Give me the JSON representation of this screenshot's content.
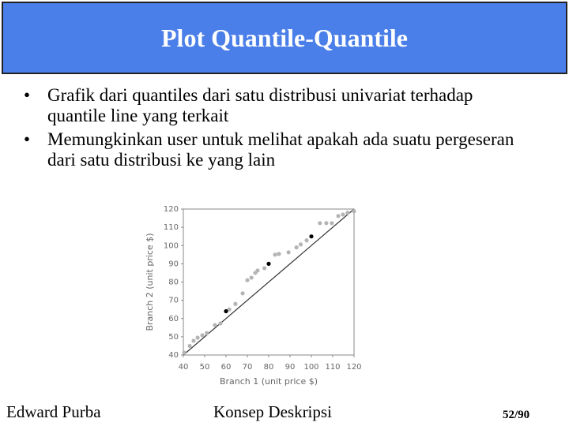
{
  "header": {
    "title": "Plot Quantile-Quantile"
  },
  "bullets": [
    "Grafik dari quantiles dari satu distribusi univariat terhadap quantile line yang terkait",
    "Memungkinkan user untuk melihat apakah ada suatu pergeseran dari satu distribusi ke yang lain"
  ],
  "chart_data": {
    "type": "scatter",
    "x_label": "Branch 1 (unit price $)",
    "y_label": "Branch 2 (unit price $)",
    "xlim": [
      40,
      120
    ],
    "ylim": [
      40,
      120
    ],
    "xticks": [
      40,
      50,
      60,
      70,
      80,
      90,
      100,
      110,
      120
    ],
    "yticks": [
      40,
      50,
      60,
      70,
      80,
      90,
      100,
      110,
      120
    ],
    "series": [
      {
        "color": "#b4b4b4",
        "x": [
          40.4,
          43,
          44.8,
          46.7,
          48.9,
          51,
          54.8,
          57.4,
          61.5,
          64.4,
          67.8,
          70,
          71.9,
          73.7,
          74.8,
          78,
          83,
          84.8,
          89.3,
          93,
          95,
          97.8,
          104,
          107,
          109.6,
          112.6,
          114.8,
          117,
          120
        ],
        "values": [
          41.3,
          45,
          47.8,
          49.5,
          50.8,
          52,
          56.4,
          57.3,
          65,
          68,
          73.8,
          81,
          82.4,
          85,
          86.3,
          87.6,
          95,
          95.4,
          96.3,
          99,
          100.6,
          102.8,
          112.3,
          112.3,
          112.3,
          116.2,
          117,
          118,
          118.8
        ]
      },
      {
        "color": "#000000",
        "x": [
          60,
          80,
          100
        ],
        "values": [
          64,
          90,
          105
        ]
      }
    ]
  },
  "footer": {
    "author": "Edward Purba",
    "topic": "Konsep Deskripsi",
    "page": "52/90"
  }
}
